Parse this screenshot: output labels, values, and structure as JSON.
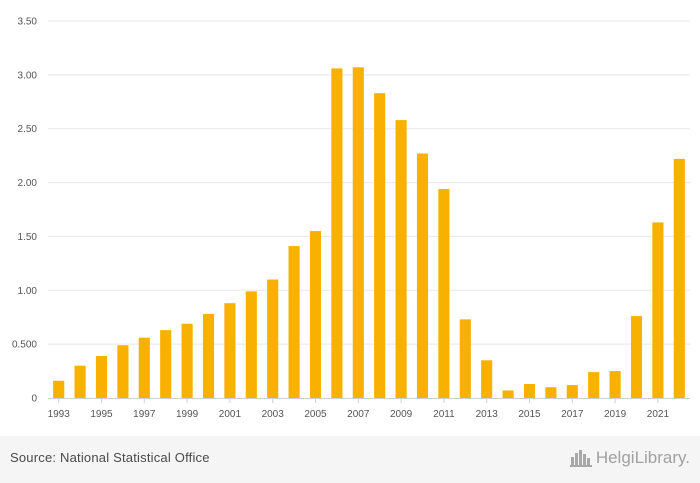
{
  "chart_data": {
    "type": "bar",
    "title": "",
    "xlabel": "",
    "ylabel": "",
    "categories": [
      "1993",
      "1994",
      "1995",
      "1996",
      "1997",
      "1998",
      "1999",
      "2000",
      "2001",
      "2002",
      "2003",
      "2004",
      "2005",
      "2006",
      "2007",
      "2008",
      "2009",
      "2010",
      "2011",
      "2012",
      "2013",
      "2014",
      "2015",
      "2016",
      "2017",
      "2018",
      "2019",
      "2020",
      "2021",
      "2022"
    ],
    "values": [
      0.16,
      0.3,
      0.39,
      0.49,
      0.56,
      0.63,
      0.69,
      0.78,
      0.88,
      0.99,
      1.1,
      1.41,
      1.55,
      3.06,
      3.07,
      2.83,
      2.58,
      2.27,
      1.94,
      0.73,
      0.35,
      0.07,
      0.13,
      0.1,
      0.12,
      0.24,
      0.25,
      0.76,
      1.63,
      2.22
    ],
    "x_tick_labels": [
      "1993",
      "1995",
      "1997",
      "1999",
      "2001",
      "2003",
      "2005",
      "2007",
      "2009",
      "2011",
      "2013",
      "2015",
      "2017",
      "2019",
      "2021"
    ],
    "y_ticks": [
      0,
      0.5,
      1.0,
      1.5,
      2.0,
      2.5,
      3.0,
      3.5
    ],
    "y_tick_labels": [
      "0",
      "0.500",
      "1.00",
      "1.50",
      "2.00",
      "2.50",
      "3.00",
      "3.50"
    ],
    "ylim": [
      0,
      3.5
    ],
    "grid": true,
    "legend": "none",
    "bar_color": "#F8B100",
    "grid_color": "#e8e8e8"
  },
  "footer": {
    "source": "Source: National Statistical Office",
    "logo_text": "HelgiLibrary.",
    "logo_icon": "city-skyline-icon"
  }
}
